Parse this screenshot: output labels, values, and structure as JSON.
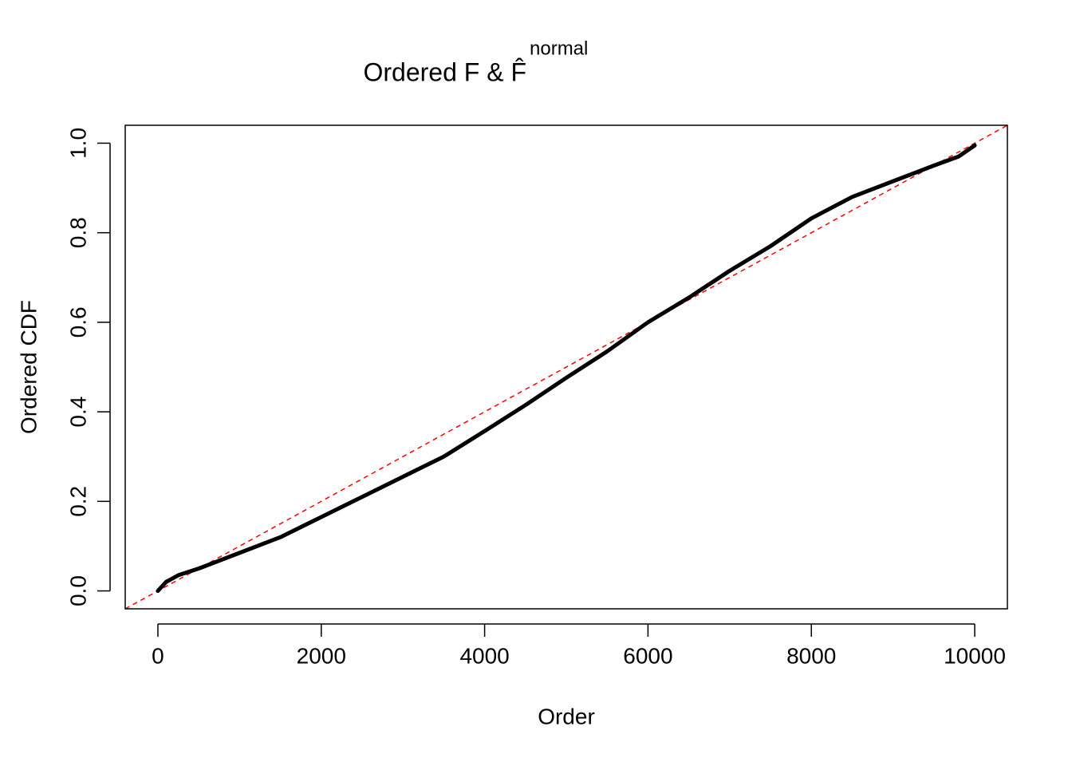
{
  "chart_data": {
    "type": "line",
    "title": "Ordered F & F̂",
    "title_superscript": "normal",
    "xlabel": "Order",
    "ylabel": "Ordered CDF",
    "x": [
      0,
      100,
      250,
      500,
      1000,
      1500,
      2000,
      2500,
      3000,
      3500,
      4000,
      4500,
      5000,
      5500,
      6000,
      6500,
      7000,
      7500,
      8000,
      8500,
      9000,
      9500,
      9800,
      10000
    ],
    "series": [
      {
        "color": "#000000",
        "values": [
          0.0,
          0.02,
          0.035,
          0.05,
          0.085,
          0.12,
          0.165,
          0.21,
          0.255,
          0.3,
          0.357,
          0.415,
          0.476,
          0.535,
          0.6,
          0.655,
          0.715,
          0.77,
          0.832,
          0.88,
          0.915,
          0.95,
          0.97,
          0.995
        ]
      }
    ],
    "reference_line": {
      "intercept": 0,
      "slope": 0.0001,
      "color": "#ff0000",
      "dashed": true
    },
    "xlim": [
      -400,
      10400
    ],
    "ylim": [
      -0.04,
      1.04
    ],
    "xticks": [
      0,
      2000,
      4000,
      6000,
      8000,
      10000
    ],
    "yticks": [
      {
        "value": 0,
        "label": "0.0"
      },
      0.2,
      0.4,
      0.6,
      0.8,
      {
        "value": 1,
        "label": "1.0"
      }
    ],
    "grid": false
  }
}
